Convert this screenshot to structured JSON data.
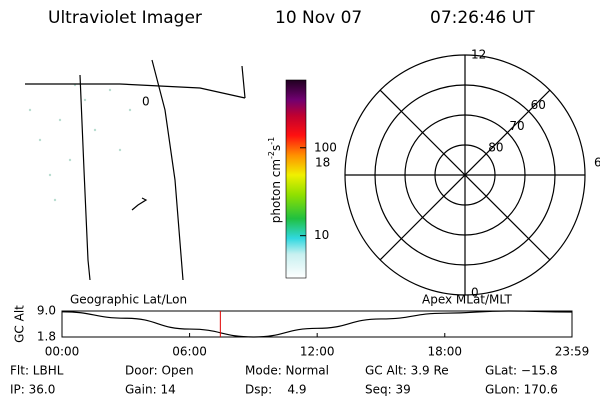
{
  "header": {
    "instrument": "Ultraviolet Imager",
    "date": "10 Nov 07",
    "time": "07:26:46 UT"
  },
  "image_panel": {
    "marker": "0"
  },
  "colorbar": {
    "label": [
      "photon cm",
      "-2",
      "s",
      "-1"
    ],
    "scale": "log",
    "clim": [
      3.3,
      590
    ],
    "ticks": [
      10,
      100
    ]
  },
  "polar": {
    "rlim": [
      90,
      50
    ],
    "rings": [
      80,
      70,
      60
    ],
    "hours": [
      12,
      6,
      0,
      18
    ]
  },
  "altitude": {
    "title_left": "Geographic Lat/Lon",
    "title_right": "Apex MLat/MLT",
    "ylabel": "GC Alt",
    "ylim": [
      1.8,
      9.0
    ],
    "yticks": [
      {
        "value": 9.0,
        "label": "9.0"
      },
      {
        "value": 1.8,
        "label": "1.8"
      }
    ],
    "xlim": [
      0,
      23.983
    ],
    "xticks": [
      {
        "value": 0,
        "label": "00:00"
      },
      {
        "value": 6,
        "label": "06:00"
      },
      {
        "value": 12,
        "label": "12:00"
      },
      {
        "value": 18,
        "label": "18:00"
      },
      {
        "value": 23.983,
        "label": "23:59"
      }
    ],
    "x": [
      0,
      3,
      6,
      9,
      12,
      15,
      18,
      21,
      23.983
    ],
    "values": [
      8.8,
      7.0,
      4.0,
      1.8,
      4.2,
      6.8,
      8.4,
      9.0,
      8.7
    ],
    "current": 7.446,
    "current_color": "#e00000"
  },
  "footer": {
    "rows": [
      [
        "Flt: LBHL",
        "Door: Open",
        "Mode: Normal",
        "GC Alt: 3.9 Re",
        "GLat: −15.8"
      ],
      [
        "IP: 36.0",
        "Gain: 14",
        "Dsp:    4.9",
        "Seq: 39",
        "GLon: 170.6"
      ]
    ]
  }
}
